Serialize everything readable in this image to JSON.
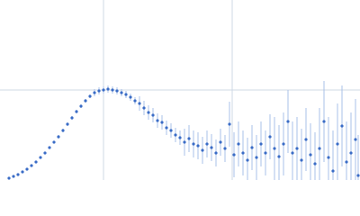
{
  "chart_data": {
    "type": "scatter",
    "x": [
      0.1,
      0.15,
      0.2,
      0.25,
      0.3,
      0.35,
      0.4,
      0.45,
      0.5,
      0.55,
      0.6,
      0.65,
      0.7,
      0.75,
      0.8,
      0.85,
      0.9,
      0.95,
      1.0,
      1.05,
      1.1,
      1.15,
      1.2,
      1.25,
      1.3,
      1.35,
      1.4,
      1.45,
      1.5,
      1.55,
      1.6,
      1.65,
      1.7,
      1.75,
      1.8,
      1.85,
      1.9,
      1.95,
      2.0,
      2.05,
      2.1,
      2.15,
      2.2,
      2.25,
      2.3,
      2.35,
      2.4,
      2.45,
      2.5,
      2.55,
      2.6,
      2.65,
      2.7,
      2.75,
      2.8,
      2.85,
      2.9,
      2.95,
      3.0,
      3.05,
      3.1,
      3.15,
      3.2,
      3.25,
      3.3,
      3.35,
      3.4,
      3.45,
      3.5,
      3.55,
      3.6,
      3.65,
      3.7,
      3.75,
      3.8,
      3.85,
      3.9,
      3.95,
      3.98
    ],
    "values": [
      0.02,
      0.04,
      0.06,
      0.09,
      0.12,
      0.16,
      0.2,
      0.25,
      0.3,
      0.36,
      0.42,
      0.48,
      0.55,
      0.62,
      0.69,
      0.76,
      0.82,
      0.88,
      0.93,
      0.97,
      0.99,
      1.0,
      1.01,
      1.0,
      0.99,
      0.97,
      0.95,
      0.92,
      0.88,
      0.85,
      0.8,
      0.75,
      0.72,
      0.66,
      0.64,
      0.58,
      0.55,
      0.5,
      0.47,
      0.42,
      0.46,
      0.4,
      0.38,
      0.33,
      0.4,
      0.36,
      0.3,
      0.42,
      0.35,
      0.62,
      0.28,
      0.4,
      0.3,
      0.22,
      0.36,
      0.25,
      0.4,
      0.3,
      0.48,
      0.35,
      0.26,
      0.4,
      0.65,
      0.3,
      0.35,
      0.22,
      0.45,
      0.28,
      0.18,
      0.35,
      0.65,
      0.25,
      0.1,
      0.4,
      0.6,
      0.2,
      0.3,
      0.45,
      0.05
    ],
    "errors": [
      0.01,
      0.01,
      0.01,
      0.01,
      0.01,
      0.01,
      0.01,
      0.01,
      0.01,
      0.01,
      0.01,
      0.02,
      0.02,
      0.02,
      0.02,
      0.02,
      0.02,
      0.02,
      0.02,
      0.04,
      0.04,
      0.04,
      0.04,
      0.04,
      0.04,
      0.04,
      0.04,
      0.04,
      0.04,
      0.08,
      0.08,
      0.08,
      0.08,
      0.08,
      0.08,
      0.08,
      0.08,
      0.08,
      0.08,
      0.15,
      0.15,
      0.15,
      0.15,
      0.15,
      0.15,
      0.15,
      0.15,
      0.15,
      0.15,
      0.25,
      0.25,
      0.25,
      0.25,
      0.25,
      0.25,
      0.25,
      0.25,
      0.25,
      0.25,
      0.35,
      0.35,
      0.35,
      0.35,
      0.35,
      0.35,
      0.35,
      0.35,
      0.35,
      0.35,
      0.45,
      0.45,
      0.45,
      0.45,
      0.45,
      0.45,
      0.45,
      0.45,
      0.45,
      0.45
    ],
    "color": "#3a6cc6",
    "error_color": "#a9c1e8",
    "xlim": [
      0,
      4
    ],
    "ylim": [
      0,
      2
    ],
    "xticks": [
      1.15,
      2.58
    ],
    "yticks": [
      1
    ],
    "grid": true
  }
}
